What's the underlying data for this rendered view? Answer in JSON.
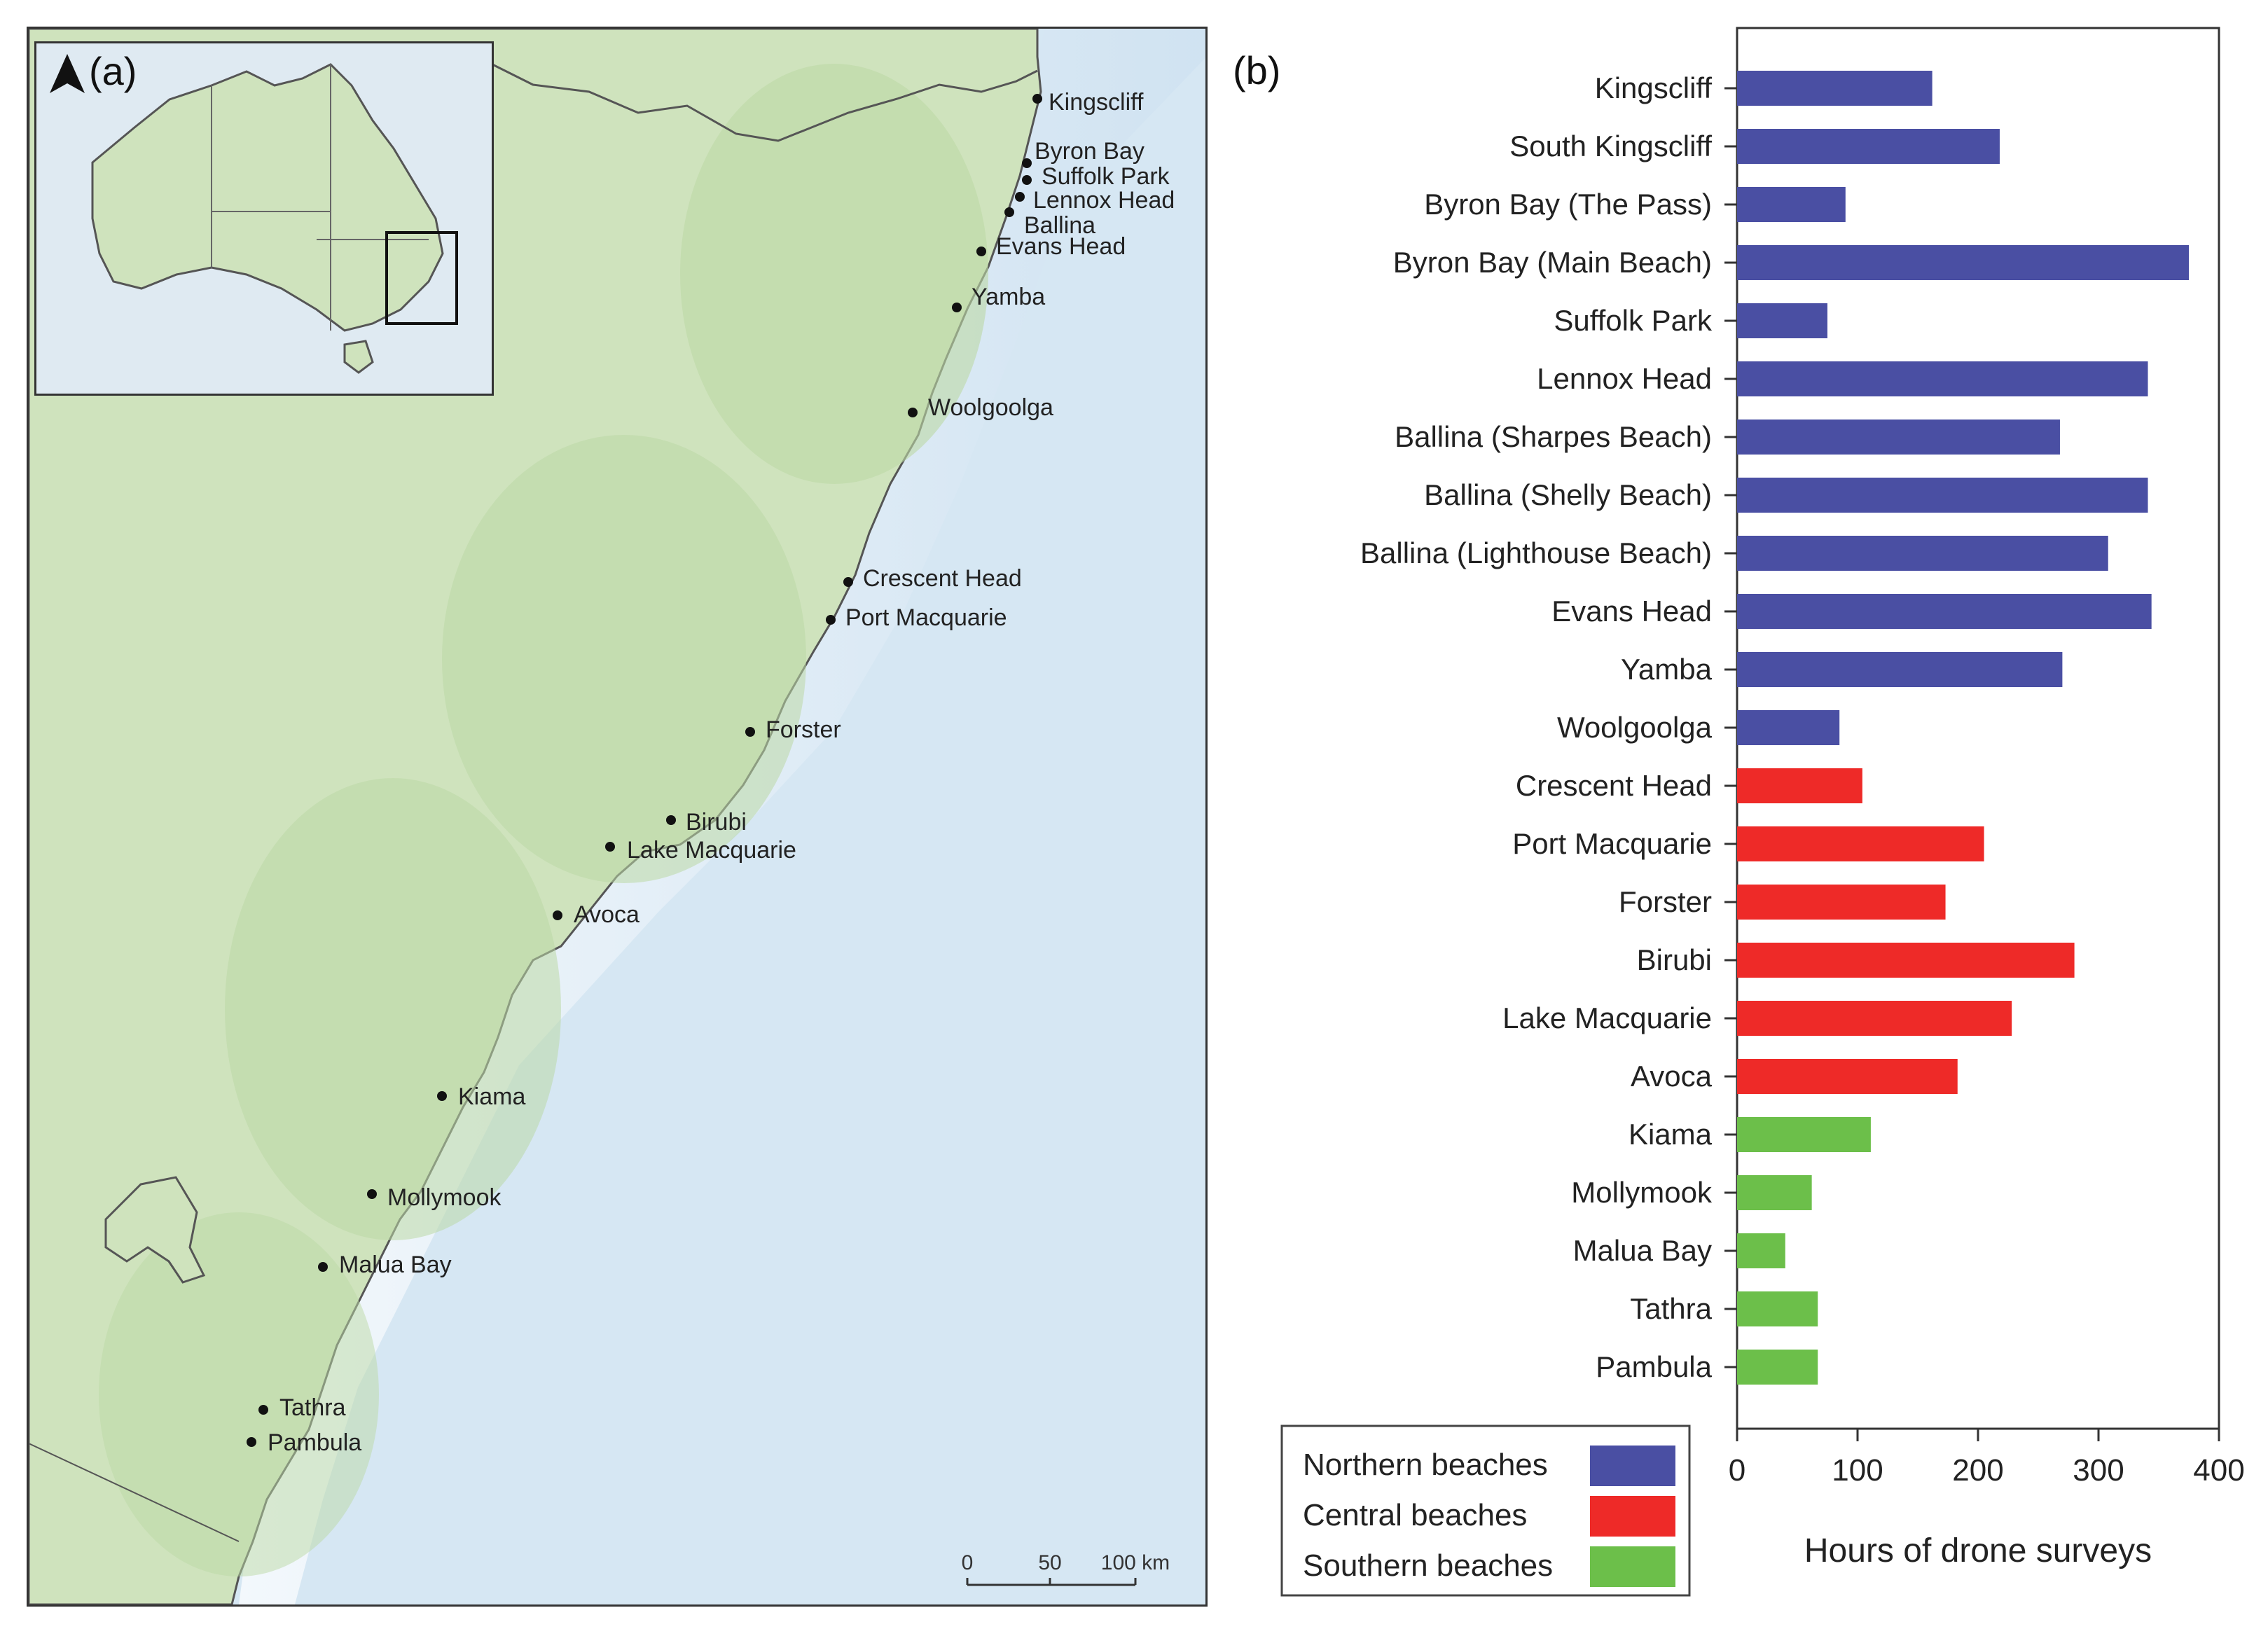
{
  "map": {
    "panel_label": "(a)",
    "north_arrow_icon": "north-arrow-icon",
    "places": [
      {
        "name": "Kingscliff"
      },
      {
        "name": "Byron Bay"
      },
      {
        "name": "Suffolk Park"
      },
      {
        "name": "Lennox Head"
      },
      {
        "name": "Ballina"
      },
      {
        "name": "Evans Head"
      },
      {
        "name": "Yamba"
      },
      {
        "name": "Woolgoolga"
      },
      {
        "name": "Crescent Head"
      },
      {
        "name": "Port Macquarie"
      },
      {
        "name": "Forster"
      },
      {
        "name": "Birubi"
      },
      {
        "name": "Lake Macquarie"
      },
      {
        "name": "Avoca"
      },
      {
        "name": "Kiama"
      },
      {
        "name": "Mollymook"
      },
      {
        "name": "Malua Bay"
      },
      {
        "name": "Tathra"
      },
      {
        "name": "Pambula"
      }
    ],
    "scale_bar": {
      "ticks": [
        "0",
        "50",
        "100 km"
      ]
    },
    "colors": {
      "land": "#cfe3bd",
      "ocean": "#e2eef6",
      "shelf": "#cde1f0"
    }
  },
  "chart_data": {
    "type": "bar",
    "orientation": "horizontal",
    "panel_label": "(b)",
    "categories": [
      "Kingscliff",
      "South Kingscliff",
      "Byron Bay (The Pass)",
      "Byron Bay (Main Beach)",
      "Suffolk Park",
      "Lennox Head",
      "Ballina (Sharpes Beach)",
      "Ballina (Shelly Beach)",
      "Ballina (Lighthouse Beach)",
      "Evans Head",
      "Yamba",
      "Woolgoolga",
      "Crescent Head",
      "Port Macquarie",
      "Forster",
      "Birubi",
      "Lake Macquarie",
      "Avoca",
      "Kiama",
      "Mollymook",
      "Malua Bay",
      "Tathra",
      "Pambula"
    ],
    "values": [
      162,
      218,
      90,
      375,
      75,
      341,
      268,
      341,
      308,
      344,
      270,
      85,
      104,
      205,
      173,
      280,
      228,
      183,
      111,
      62,
      40,
      67,
      67
    ],
    "groups": [
      "Northern beaches",
      "Northern beaches",
      "Northern beaches",
      "Northern beaches",
      "Northern beaches",
      "Northern beaches",
      "Northern beaches",
      "Northern beaches",
      "Northern beaches",
      "Northern beaches",
      "Northern beaches",
      "Northern beaches",
      "Central beaches",
      "Central beaches",
      "Central beaches",
      "Central beaches",
      "Central beaches",
      "Central beaches",
      "Southern beaches",
      "Southern beaches",
      "Southern beaches",
      "Southern beaches",
      "Southern beaches"
    ],
    "legend": [
      {
        "label": "Northern beaches",
        "color": "#4a4fa3"
      },
      {
        "label": "Central beaches",
        "color": "#ee2a28"
      },
      {
        "label": "Southern beaches",
        "color": "#6cbf4a"
      }
    ],
    "xlabel": "Hours of drone surveys",
    "ylabel": "",
    "xlim": [
      0,
      400
    ],
    "xticks": [
      0,
      100,
      200,
      300,
      400
    ],
    "legend_position": "bottom-left"
  }
}
